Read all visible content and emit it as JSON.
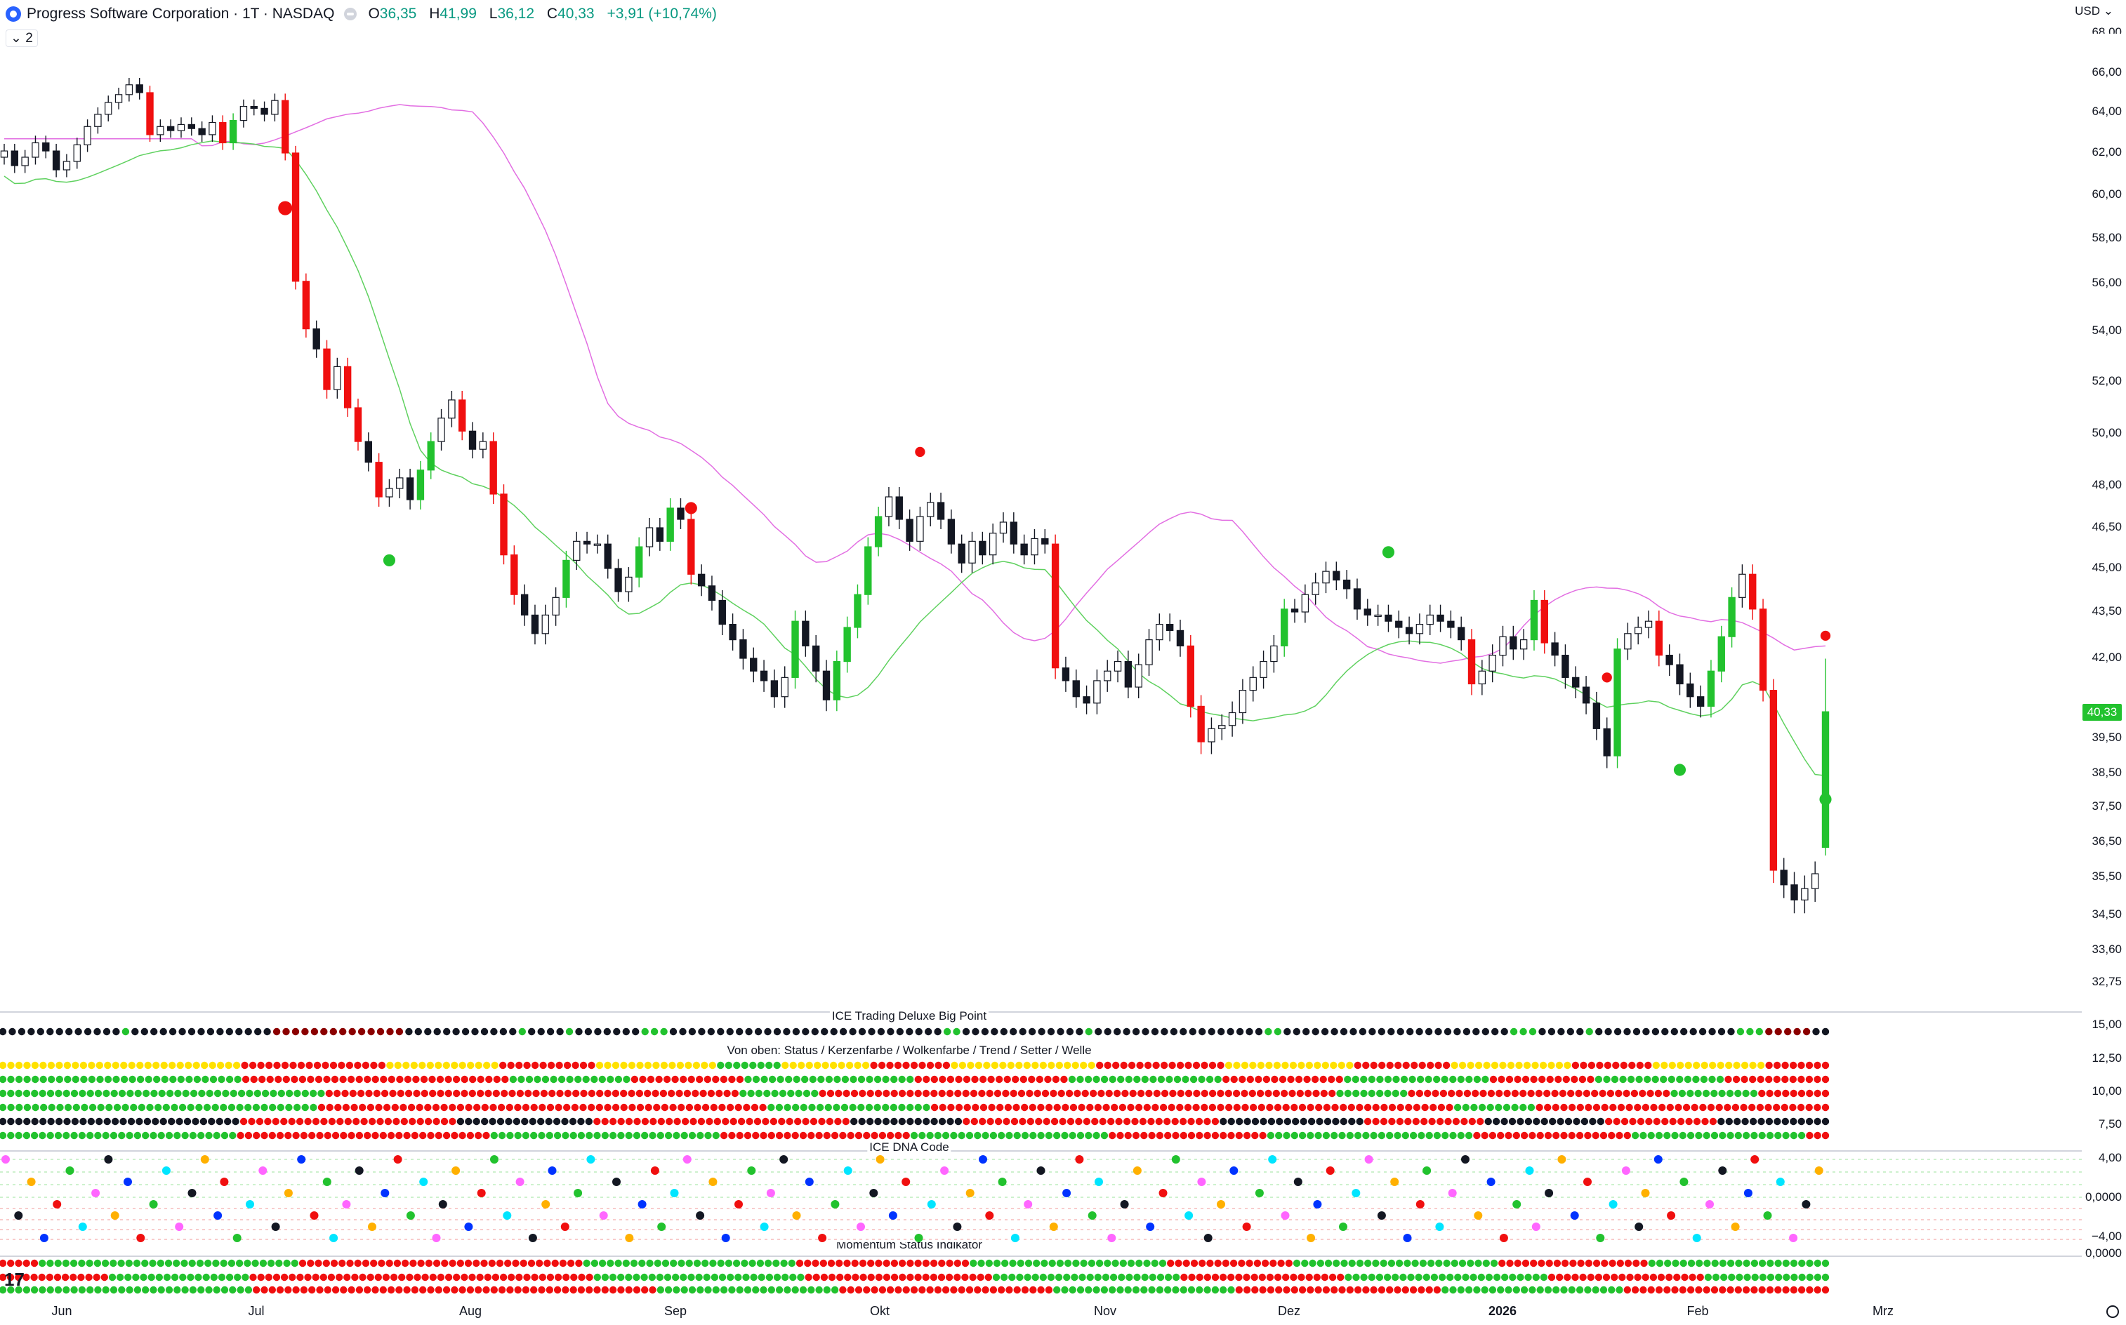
{
  "header": {
    "symbol": "Progress Software Corporation · 1T · NASDAQ",
    "o_label": "O",
    "o_value": "36,35",
    "h_label": "H",
    "h_value": "41,99",
    "l_label": "L",
    "l_value": "36,12",
    "c_label": "C",
    "c_value": "40,33",
    "change": "+3,91 (+10,74%)",
    "legend_toggle": "⌄ 2",
    "currency": "USD ⌄"
  },
  "pane_titles": {
    "big_point": "ICE Trading Deluxe Big Point",
    "status": "Von oben: Status / Kerzenfarbe / Wolkenfarbe / Trend / Setter / Welle",
    "dna": "ICE DNA Code",
    "momentum": "Momentum Status Indikator"
  },
  "last_price": "40,33",
  "colors": {
    "bull": "#22c22e",
    "bear": "#f00f0f",
    "black": "#131722",
    "cloud_pink": "#fbe0fb",
    "cloud_green": "#e9fbe9",
    "yellow": "#ffe100",
    "dark_red": "#8b0000"
  },
  "chart_data": {
    "type": "candlestick",
    "currency": "USD",
    "price_axis": [
      "66,00",
      "64,00",
      "62,00",
      "60,00",
      "58,00",
      "56,00",
      "54,00",
      "52,00",
      "50,00",
      "48,00",
      "46,50",
      "45,00",
      "43,50",
      "42,00",
      "39,50",
      "38,50",
      "37,50",
      "36,50",
      "35,50",
      "34,50",
      "33,60",
      "32,75"
    ],
    "price_axis_top_partial": "68,00",
    "ylim": [
      32.5,
      68.0
    ],
    "x_axis_labels": [
      "Jun",
      "Jul",
      "Aug",
      "Sep",
      "Okt",
      "Nov",
      "Dez",
      "2026",
      "Feb",
      "Mrz"
    ],
    "x_axis_bold": "2026",
    "last_ohlc": {
      "open": 36.35,
      "high": 41.99,
      "low": 36.12,
      "close": 40.33
    },
    "closes": [
      62.1,
      61.4,
      61.8,
      62.5,
      62.1,
      61.2,
      61.6,
      62.4,
      63.3,
      63.9,
      64.5,
      64.9,
      65.4,
      65.0,
      62.9,
      63.3,
      63.1,
      63.4,
      63.2,
      62.9,
      63.5,
      62.5,
      63.6,
      64.3,
      64.2,
      63.9,
      64.6,
      62.0,
      56.1,
      54.1,
      53.3,
      51.7,
      52.6,
      51.0,
      49.7,
      48.9,
      47.6,
      47.9,
      48.3,
      47.5,
      48.6,
      49.7,
      50.6,
      51.3,
      50.1,
      49.4,
      49.7,
      47.7,
      45.5,
      44.1,
      43.4,
      42.8,
      43.4,
      44.0,
      45.3,
      46.0,
      45.9,
      45.9,
      45.0,
      44.2,
      44.7,
      45.8,
      46.5,
      46.0,
      47.2,
      46.8,
      44.8,
      44.4,
      43.9,
      43.1,
      42.6,
      42.0,
      41.6,
      41.3,
      40.8,
      41.4,
      43.2,
      42.4,
      41.6,
      40.7,
      41.9,
      43.0,
      44.1,
      45.8,
      46.9,
      47.6,
      46.8,
      46.0,
      46.9,
      47.4,
      46.8,
      45.9,
      45.2,
      46.0,
      45.5,
      46.3,
      46.7,
      45.9,
      45.5,
      46.1,
      45.9,
      41.7,
      41.3,
      40.8,
      40.6,
      41.3,
      41.6,
      41.9,
      41.1,
      41.8,
      42.6,
      43.1,
      42.9,
      42.4,
      40.5,
      39.4,
      39.8,
      39.9,
      40.3,
      41.0,
      41.4,
      41.9,
      42.4,
      43.6,
      43.5,
      44.1,
      44.5,
      44.9,
      44.6,
      44.3,
      43.6,
      43.4,
      43.4,
      43.2,
      43.0,
      42.8,
      43.1,
      43.4,
      43.2,
      43.0,
      42.6,
      41.2,
      41.6,
      42.1,
      42.7,
      42.3,
      42.6,
      43.9,
      42.5,
      42.1,
      41.4,
      41.1,
      40.6,
      39.8,
      39.0,
      42.3,
      42.8,
      43.0,
      43.2,
      42.1,
      41.8,
      41.2,
      40.8,
      40.5,
      41.6,
      42.7,
      44.0,
      44.8,
      43.6,
      41.0,
      35.7,
      35.3,
      34.9,
      35.2,
      35.6,
      40.33
    ]
  },
  "indicator_rows": {
    "big_point": "KKKKKKKKKKKKKGKKKKKKKKKKKKKKKMMMMMMMMMMMMMMKKKKKKKKKKKKGKKKKGKKKKKKKGGGKKKKKKKKKKKKKKKKKKKKKKKKKKKKKGGKKKKKKKKKKKKKGKKKKKKKKKKKKKKKKKKGGKKKKKKKKKKKKKKKKKKKKKKKKGGGKKKKKGKKKKKKKKKKKKKKKGGGMMMMMKK",
    "status": [
      "YYYYYYYYYYYYYYYYYYYYYYYYYYYYYYRRRRRRRRRRRRRRRRRRYYYYYYYYYYYYYYRRRRRRRRRRRRYYYYYYYYYYYYYYYGGGGGGGGYYYYYYYYYYYRRRRRRRRRRYYYYYYYYYYYYYYYYYYRRRRRRRRRRRRRRRRYYYYYYYYYYYYYYYYRRRRRRRRRRRRYYYYYYYYYYYYYYYRRRRRRRRRRYYYYYYYYYYYYYYRRRRRRRR",
      "GGGGGGGGGGGGGGGGGGGGGGGGGGGGGGRRRRRRRRRRRRRRRRRRRRRRRRRRRRRRRRRGGGGGGGGGGGGGGGRRRRRRRRRRRRRRGGGGGGGGGGGGGGGGGGGGGRRRRRRRRRRRRRRRRRRRGGGGGGGGGGGGGGGGGGGRRRRRRRRRRRRRRRGGGGGGGGGGGGGGGGGGRRRRRRRRRRRRRGGGGGGGGGGGGGGGGRRRRRRRRRRRRR",
      "GGGGGGGGGGGGGGGGGGGGGGGGGGGGGGGGGGGGGGGGGRRRRRRRRRRRRRRRRRRRRRRRRRRRRRRRRRRRRRRRRRRRRRRRRRRRRGGGGGGGGGGRRRRRRRRRRRRRRRRRRRRRRRRRRRRRRRRRRRRRRRRRRRRRRRRRRRRRRRRRRRRRRRRRGGGGGGGGGRRRRRRRRRRRRRRRRRRRRRRRRRRRRRRRRRGGGGGGGGGGGRRRRRRRRR",
      "GGGGGGGGGGGGGGGGGGGGGGGGGGGGGGGGGGGGGGGRRRRRRRRRRRRRRRRRRRRRRRRRRRRRRRRRRRRRRRRRRRRRRRRRRRRRRRGGGGGGGGGGGGGGGGGGGGRRRRRRRRRRRRRRRRRRRRRRRRRRRRRRRRRRRRRRRRRRRRRRRRRRRRRRRRRRRRRRRRGGGGGGGGGGRRRRRRRRRRRRRRRRRRRRRRRRRRRRRRRRRRRR",
      "KKKKKKKKKKKKKKKKKKKKKKKKKKKKKKRRRRRRRRRRRRRRRRRRRRRRRRRRRKKKKKKKKKKKKKKKKKRRRRRRRRRRRRRRRRRRRRRRRRRRRRRRRRKKKKKKKKKKKKKKRRRRRRRRRRRRRRRRRRRRRRRRRRRRRRRRKKKKKKKKKKKKKKKKKKRRRRRRRRRRRRRRRKKKKKKKKKKKKKKKRRRRRRRRRRRRRRKKKKKKKKKKKKKK",
      "GGGGGGGGGGGGGGGGGGGGGGGGGGGGGGRRRRRRRRRRRRRRRRRRRRRRRRRRRRRRRRGGGGGGGGGGGGGGGGGGGGGGGGGGGGGRRRRRRRRRRRRRRRRRRRRRRRRGGGGGGGGGGGGGGGGGGGGGGGGGRRRRRRRRRRRRRRRRRRRRGGGGGGGGGGGGGGGGGGGGGGGGGGRRRRRRRRRRRRRRRRRRRRGGGGGGGGGGGGGGGGGGGGGGRRR"
    ],
    "momentum": [
      "RRRRRGGGGGGGGGGGGGGGGGGGGGGGGGGGGGGGGGRRRRRRRRRRRRRRRRRRRRRRRRRRRRRRRRRRRRGGGGGGGGGGGGGGGGGGGGGGGGGGGRRRRRRRRRRRRRRRRRRRRRRGGGGGGGGGGGGGGGGGGGGGGGGGRRRRRRRRRRRRRRRRGGGGGGGGGGGGGGGGGGGGGGGGGGRRRRRRRRRRRRRRRRRRRGGGGGGGGGGGGGGGGGGGGGGG",
      "RRRRRRRRRRRRRRGGGGGGGGGGGGGGGGGGRRRRRRRRRRRRRRRRRRRRRRRRRRRRRRRRRRRRRRRRRRRRGGGGGGGGGGGGGGGGGGGGGGGGGGGRRRRRRRRRRRRRRRRRRRRRRRRGGGGGGGGGGGGGGGGGGGGGGGGRRRRRRRRRRRRRRRRRRRRRGGGGGGGGGGGGGGGGGGGGGGGGGGRRRRRRRRRRRRRRRRRRRRGGGGGGGGGGGGGGGG",
      "GGGGGGGGGGGGGGGGGGGGGGGGGGGGGGGGRRRRRRRRRRRRRRRRRRRRRRRRRRRRRRRRRRRRRRRRRRRRRRRRRRRGGGGGGGGGGGGGGGGGGGGGGGRRRRRRRRRRRRRRRRRRRRRRRRRRRGGGGGGGGGGGGGGGGGGGGGGGRRRRRRRRRRRRRRRRRRRRRRRRRRGGGGGGGGGGGGGGGGGGGGGGGRRRRRRRRRRRRRRRRRRRRRRRRRR"
    ]
  },
  "indicator_axes": {
    "status": [
      "15,00",
      "12,50",
      "10,00",
      "7,50"
    ],
    "dna": [
      "4,00",
      "0,0000",
      "−4,00"
    ],
    "momentum": [
      "0,0000"
    ]
  }
}
